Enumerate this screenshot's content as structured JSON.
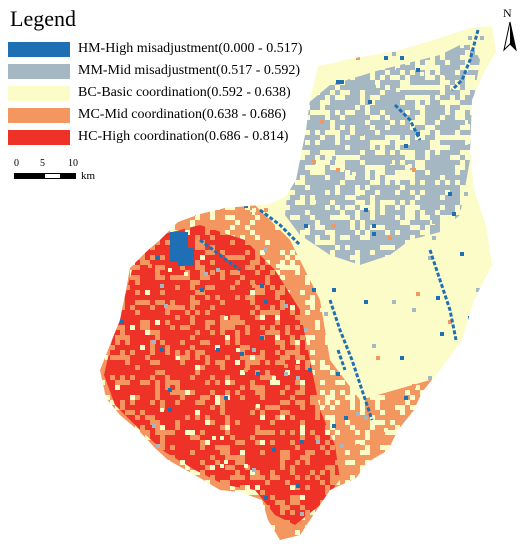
{
  "legend": {
    "title": "Legend",
    "items": [
      {
        "label": "HM-High misadjustment(0.000 - 0.517)",
        "color": "#1f6fb5"
      },
      {
        "label": "MM-Mid misadjustment(0.517 - 0.592)",
        "color": "#a5b7c2"
      },
      {
        "label": "BC-Basic coordination(0.592 - 0.638)",
        "color": "#fcfcc8"
      },
      {
        "label": "MC-Mid coordination(0.638 - 0.686)",
        "color": "#f3965f"
      },
      {
        "label": "HC-High coordination(0.686 - 0.814)",
        "color": "#ee3228"
      }
    ]
  },
  "scale": {
    "ticks": [
      "0",
      "5",
      "10"
    ],
    "unit": "km"
  },
  "north": {
    "letter": "N"
  },
  "map": {
    "class_colors": {
      "HM": "#1f6fb5",
      "MM": "#a5b7c2",
      "BC": "#fcfcc8",
      "MC": "#f3965f",
      "HC": "#ee3228"
    }
  }
}
